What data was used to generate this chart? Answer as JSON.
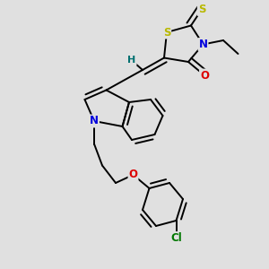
{
  "background_color": "#e0e0e0",
  "atom_colors": {
    "S": "#b8b800",
    "N": "#0000dd",
    "O": "#dd0000",
    "Cl": "#007700",
    "C": "#000000",
    "H": "#007070"
  },
  "bond_color": "#000000",
  "bond_width": 1.4
}
